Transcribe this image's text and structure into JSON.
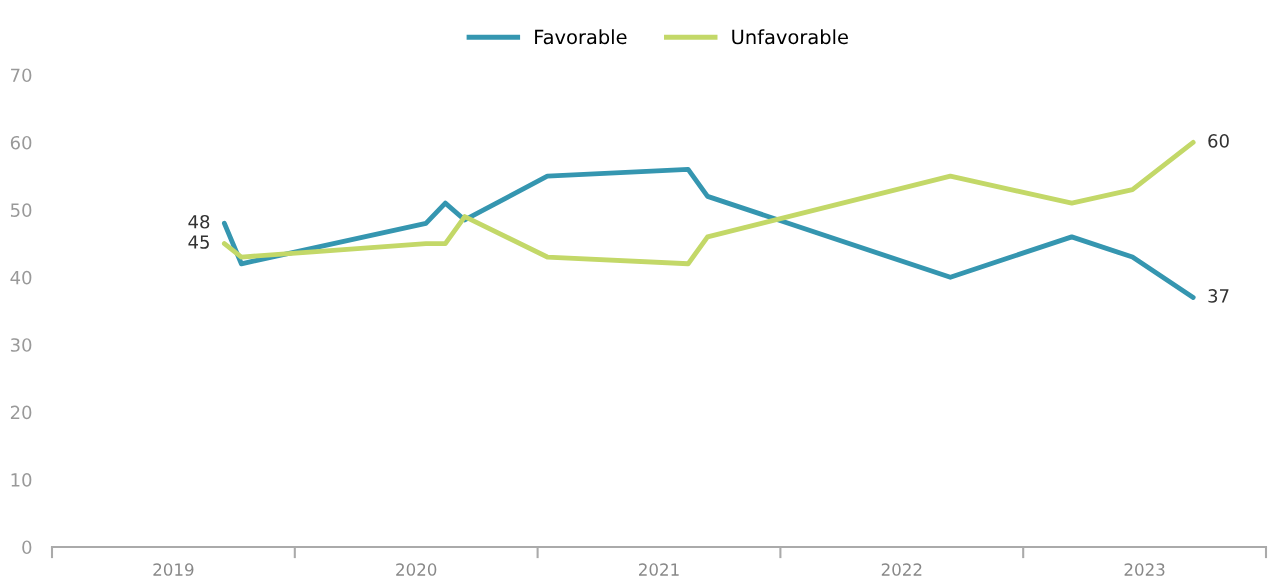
{
  "chart_data": {
    "type": "line",
    "series": [
      {
        "name": "Favorable",
        "color": "#3596b0",
        "x": [
          2019.71,
          2019.78,
          2020.54,
          2020.62,
          2020.7,
          2021.04,
          2021.62,
          2021.7,
          2022.7,
          2023.2,
          2023.45,
          2023.7
        ],
        "values": [
          48,
          42,
          48,
          51,
          48.5,
          55,
          56,
          52,
          40,
          46,
          43,
          37
        ],
        "value_labels": [
          "48",
          null,
          null,
          null,
          null,
          null,
          null,
          null,
          null,
          null,
          null,
          "37"
        ]
      },
      {
        "name": "Unfavorable",
        "color": "#c3d868",
        "x": [
          2019.71,
          2019.78,
          2020.54,
          2020.62,
          2020.7,
          2021.04,
          2021.62,
          2021.7,
          2022.7,
          2023.2,
          2023.45,
          2023.7
        ],
        "values": [
          45,
          43,
          45,
          45,
          49,
          43,
          42,
          46,
          55,
          51,
          53,
          60
        ],
        "value_labels": [
          "45",
          null,
          null,
          null,
          null,
          null,
          null,
          null,
          null,
          null,
          null,
          "60"
        ]
      }
    ],
    "xlim": [
      2019,
      2024
    ],
    "xticks": [
      {
        "value": 2019,
        "label": null
      },
      {
        "value": 2019.5,
        "label": "2019"
      },
      {
        "value": 2020,
        "label": null
      },
      {
        "value": 2020.5,
        "label": "2020"
      },
      {
        "value": 2021,
        "label": null
      },
      {
        "value": 2021.5,
        "label": "2021"
      },
      {
        "value": 2022,
        "label": null
      },
      {
        "value": 2022.5,
        "label": "2022"
      },
      {
        "value": 2023,
        "label": null
      },
      {
        "value": 2023.5,
        "label": "2023"
      },
      {
        "value": 2024,
        "label": null
      }
    ],
    "ylim": [
      0,
      70
    ],
    "yticks": [
      0,
      10,
      20,
      30,
      40,
      50,
      60,
      70
    ],
    "grid": false,
    "legend": "top",
    "marker": "none",
    "line_style": "solid"
  }
}
